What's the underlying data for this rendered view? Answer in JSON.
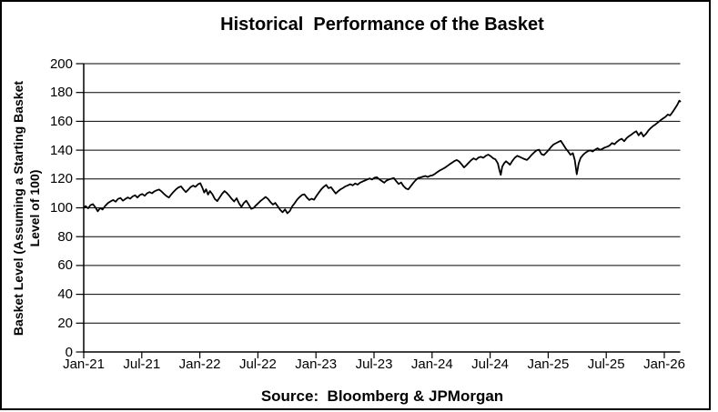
{
  "window": {
    "background": "#ffffff",
    "border_color": "#000000"
  },
  "chart_data": {
    "type": "line",
    "title": "Historical  Performance of the Basket",
    "source_note": "Source:  Bloomberg & JPMorgan",
    "xlabel": "",
    "ylabel": "Basket Level (Assuming a Starting Basket Level of 100)",
    "ylabel_lines": [
      "Basket Level (Assuming a Starting Basket",
      "Level of 100)"
    ],
    "line_color": "#000000",
    "grid": "horizontal-only",
    "legend": "none",
    "ylim": [
      0,
      200
    ],
    "y_ticks": [
      0,
      20,
      40,
      60,
      80,
      100,
      120,
      140,
      160,
      180,
      200
    ],
    "x_unit": "months since Jan-2021",
    "xlim_months": [
      0,
      61.65
    ],
    "x_tick_labels": [
      "Jan-21",
      "Jul-21",
      "Jan-22",
      "Jul-22",
      "Jan-23",
      "Jul-23",
      "Jan-24",
      "Jul-24",
      "Jan-25",
      "Jul-25",
      "Jan-26"
    ],
    "x_tick_months": [
      0,
      6,
      12,
      18,
      24,
      30,
      36,
      42,
      48,
      54,
      60
    ],
    "series": [
      {
        "name": "Basket Level",
        "points": [
          [
            0,
            100
          ],
          [
            0.2,
            101.2
          ],
          [
            0.45,
            99.6
          ],
          [
            0.7,
            101.8
          ],
          [
            0.95,
            102.6
          ],
          [
            1.2,
            100.3
          ],
          [
            1.45,
            97.6
          ],
          [
            1.7,
            99.9
          ],
          [
            1.95,
            98.8
          ],
          [
            2.2,
            101.2
          ],
          [
            2.5,
            103.3
          ],
          [
            2.8,
            104.6
          ],
          [
            3.05,
            105.4
          ],
          [
            3.3,
            104.2
          ],
          [
            3.55,
            106.2
          ],
          [
            3.8,
            106.8
          ],
          [
            4.05,
            104.9
          ],
          [
            4.3,
            106.1
          ],
          [
            4.55,
            107.2
          ],
          [
            4.8,
            106.3
          ],
          [
            5.05,
            107.9
          ],
          [
            5.3,
            108.7
          ],
          [
            5.55,
            107.1
          ],
          [
            5.8,
            108.9
          ],
          [
            6.05,
            109.6
          ],
          [
            6.3,
            108.3
          ],
          [
            6.55,
            110.1
          ],
          [
            6.8,
            110.9
          ],
          [
            7.05,
            110.1
          ],
          [
            7.3,
            111.4
          ],
          [
            7.55,
            112.2
          ],
          [
            7.8,
            112.7
          ],
          [
            8.05,
            111.3
          ],
          [
            8.3,
            109.6
          ],
          [
            8.55,
            108.2
          ],
          [
            8.8,
            107.1
          ],
          [
            9.05,
            109.3
          ],
          [
            9.3,
            111.2
          ],
          [
            9.55,
            112.9
          ],
          [
            9.8,
            114.2
          ],
          [
            10.05,
            114.9
          ],
          [
            10.3,
            112.8
          ],
          [
            10.55,
            110.9
          ],
          [
            10.8,
            112.5
          ],
          [
            11.05,
            114.4
          ],
          [
            11.3,
            115.4
          ],
          [
            11.55,
            114.6
          ],
          [
            11.8,
            116.3
          ],
          [
            12.05,
            117.1
          ],
          [
            12.25,
            114.1
          ],
          [
            12.45,
            110.6
          ],
          [
            12.65,
            112.9
          ],
          [
            12.85,
            109.2
          ],
          [
            13.05,
            111.6
          ],
          [
            13.3,
            109.4
          ],
          [
            13.55,
            106.1
          ],
          [
            13.8,
            104.7
          ],
          [
            14.05,
            107.2
          ],
          [
            14.3,
            109.8
          ],
          [
            14.55,
            111.6
          ],
          [
            14.8,
            110.2
          ],
          [
            15.05,
            108.3
          ],
          [
            15.3,
            106.1
          ],
          [
            15.55,
            104.4
          ],
          [
            15.8,
            106.6
          ],
          [
            16.05,
            103.1
          ],
          [
            16.3,
            100.6
          ],
          [
            16.55,
            103.4
          ],
          [
            16.8,
            104.9
          ],
          [
            17.05,
            102.3
          ],
          [
            17.3,
            99.3
          ],
          [
            17.55,
            99.9
          ],
          [
            17.8,
            101.7
          ],
          [
            18.05,
            103.3
          ],
          [
            18.3,
            104.9
          ],
          [
            18.55,
            106.2
          ],
          [
            18.8,
            107.6
          ],
          [
            19.05,
            106.1
          ],
          [
            19.3,
            104
          ],
          [
            19.55,
            102.3
          ],
          [
            19.8,
            103.4
          ],
          [
            20.05,
            101
          ],
          [
            20.3,
            98.6
          ],
          [
            20.55,
            96.9
          ],
          [
            20.8,
            98.9
          ],
          [
            21.05,
            96.2
          ],
          [
            21.3,
            97.8
          ],
          [
            21.55,
            101
          ],
          [
            21.8,
            103.2
          ],
          [
            22.05,
            105.7
          ],
          [
            22.3,
            107.4
          ],
          [
            22.55,
            108.9
          ],
          [
            22.8,
            109.4
          ],
          [
            23.05,
            107.2
          ],
          [
            23.3,
            105.4
          ],
          [
            23.55,
            106.3
          ],
          [
            23.8,
            105.6
          ],
          [
            24.05,
            108.2
          ],
          [
            24.3,
            110.6
          ],
          [
            24.55,
            112.8
          ],
          [
            24.8,
            114.6
          ],
          [
            25.05,
            115.9
          ],
          [
            25.3,
            113.6
          ],
          [
            25.55,
            114.3
          ],
          [
            25.8,
            112.1
          ],
          [
            26.05,
            109.9
          ],
          [
            26.3,
            111.6
          ],
          [
            26.55,
            112.9
          ],
          [
            26.8,
            113.8
          ],
          [
            27.05,
            114.9
          ],
          [
            27.3,
            115.6
          ],
          [
            27.55,
            116.4
          ],
          [
            27.8,
            115.6
          ],
          [
            28.05,
            116.9
          ],
          [
            28.3,
            116.1
          ],
          [
            28.55,
            117.4
          ],
          [
            28.8,
            118.2
          ],
          [
            29.05,
            118.9
          ],
          [
            29.3,
            119.7
          ],
          [
            29.55,
            120.4
          ],
          [
            29.8,
            119.6
          ],
          [
            30.05,
            120.9
          ],
          [
            30.3,
            121.2
          ],
          [
            30.55,
            119.8
          ],
          [
            30.8,
            118.6
          ],
          [
            31.05,
            117.4
          ],
          [
            31.3,
            118.9
          ],
          [
            31.55,
            119.7
          ],
          [
            31.8,
            120.2
          ],
          [
            32.05,
            120.6
          ],
          [
            32.3,
            118.4
          ],
          [
            32.55,
            116.5
          ],
          [
            32.8,
            117.6
          ],
          [
            33.05,
            115.1
          ],
          [
            33.3,
            113.4
          ],
          [
            33.55,
            112.8
          ],
          [
            33.8,
            115
          ],
          [
            34.05,
            117.2
          ],
          [
            34.3,
            119.1
          ],
          [
            34.55,
            120.6
          ],
          [
            34.8,
            121.1
          ],
          [
            35.05,
            121.6
          ],
          [
            35.3,
            122.1
          ],
          [
            35.55,
            121.4
          ],
          [
            35.8,
            122.2
          ],
          [
            36.05,
            122.5
          ],
          [
            36.3,
            123.6
          ],
          [
            36.55,
            124.8
          ],
          [
            36.8,
            125.9
          ],
          [
            37.05,
            126.8
          ],
          [
            37.3,
            127.7
          ],
          [
            37.55,
            128.9
          ],
          [
            37.8,
            130.1
          ],
          [
            38.05,
            131.2
          ],
          [
            38.3,
            132.4
          ],
          [
            38.55,
            133.2
          ],
          [
            38.8,
            132.1
          ],
          [
            39.05,
            130.2
          ],
          [
            39.3,
            128
          ],
          [
            39.55,
            129.6
          ],
          [
            39.8,
            131.4
          ],
          [
            40.05,
            133.1
          ],
          [
            40.3,
            134.3
          ],
          [
            40.55,
            133.4
          ],
          [
            40.8,
            134.9
          ],
          [
            41.05,
            135.4
          ],
          [
            41.3,
            134.7
          ],
          [
            41.55,
            136.1
          ],
          [
            41.8,
            136.9
          ],
          [
            42.05,
            135.9
          ],
          [
            42.3,
            134.4
          ],
          [
            42.55,
            133.6
          ],
          [
            42.8,
            130.8
          ],
          [
            42.95,
            126.4
          ],
          [
            43.1,
            122.9
          ],
          [
            43.25,
            128.6
          ],
          [
            43.45,
            130.9
          ],
          [
            43.65,
            132.3
          ],
          [
            43.85,
            131.1
          ],
          [
            44.05,
            129.9
          ],
          [
            44.3,
            132.6
          ],
          [
            44.55,
            134.7
          ],
          [
            44.8,
            136.1
          ],
          [
            45.05,
            135.4
          ],
          [
            45.3,
            134.6
          ],
          [
            45.55,
            133.8
          ],
          [
            45.8,
            133.2
          ],
          [
            46.05,
            134.9
          ],
          [
            46.3,
            136.8
          ],
          [
            46.55,
            138.4
          ],
          [
            46.8,
            139.8
          ],
          [
            47.05,
            140.3
          ],
          [
            47.3,
            137.2
          ],
          [
            47.55,
            136.6
          ],
          [
            47.8,
            138.3
          ],
          [
            48.05,
            140.1
          ],
          [
            48.3,
            142.2
          ],
          [
            48.55,
            143.9
          ],
          [
            48.8,
            144.8
          ],
          [
            49.05,
            145.7
          ],
          [
            49.3,
            146.5
          ],
          [
            49.55,
            143.9
          ],
          [
            49.8,
            141.3
          ],
          [
            50.05,
            139.2
          ],
          [
            50.3,
            136.8
          ],
          [
            50.55,
            137.9
          ],
          [
            50.75,
            133.2
          ],
          [
            50.95,
            123.3
          ],
          [
            51.15,
            130.8
          ],
          [
            51.35,
            134.6
          ],
          [
            51.6,
            136.7
          ],
          [
            51.85,
            138.2
          ],
          [
            52.1,
            139.3
          ],
          [
            52.35,
            139.9
          ],
          [
            52.6,
            139.1
          ],
          [
            52.85,
            140.4
          ],
          [
            53.1,
            141.3
          ],
          [
            53.35,
            140.2
          ],
          [
            53.6,
            140.9
          ],
          [
            53.85,
            141.8
          ],
          [
            54.1,
            142.4
          ],
          [
            54.35,
            143.3
          ],
          [
            54.6,
            144.9
          ],
          [
            54.85,
            144.1
          ],
          [
            55.1,
            145.8
          ],
          [
            55.35,
            147.1
          ],
          [
            55.6,
            147.9
          ],
          [
            55.85,
            146.2
          ],
          [
            56.1,
            148.3
          ],
          [
            56.35,
            149.7
          ],
          [
            56.6,
            150.8
          ],
          [
            56.85,
            152.1
          ],
          [
            57.1,
            153.1
          ],
          [
            57.35,
            150.3
          ],
          [
            57.6,
            152.4
          ],
          [
            57.85,
            149.5
          ],
          [
            58.1,
            151.2
          ],
          [
            58.35,
            153.6
          ],
          [
            58.6,
            155.3
          ],
          [
            58.85,
            156.8
          ],
          [
            59.1,
            157.9
          ],
          [
            59.35,
            159.3
          ],
          [
            59.6,
            160.6
          ],
          [
            59.85,
            161.9
          ],
          [
            60.1,
            163
          ],
          [
            60.35,
            164.7
          ],
          [
            60.6,
            164.1
          ],
          [
            60.85,
            166.3
          ],
          [
            61.1,
            168.9
          ],
          [
            61.35,
            171.6
          ],
          [
            61.55,
            174.3
          ],
          [
            61.65,
            173.8
          ]
        ]
      }
    ]
  }
}
